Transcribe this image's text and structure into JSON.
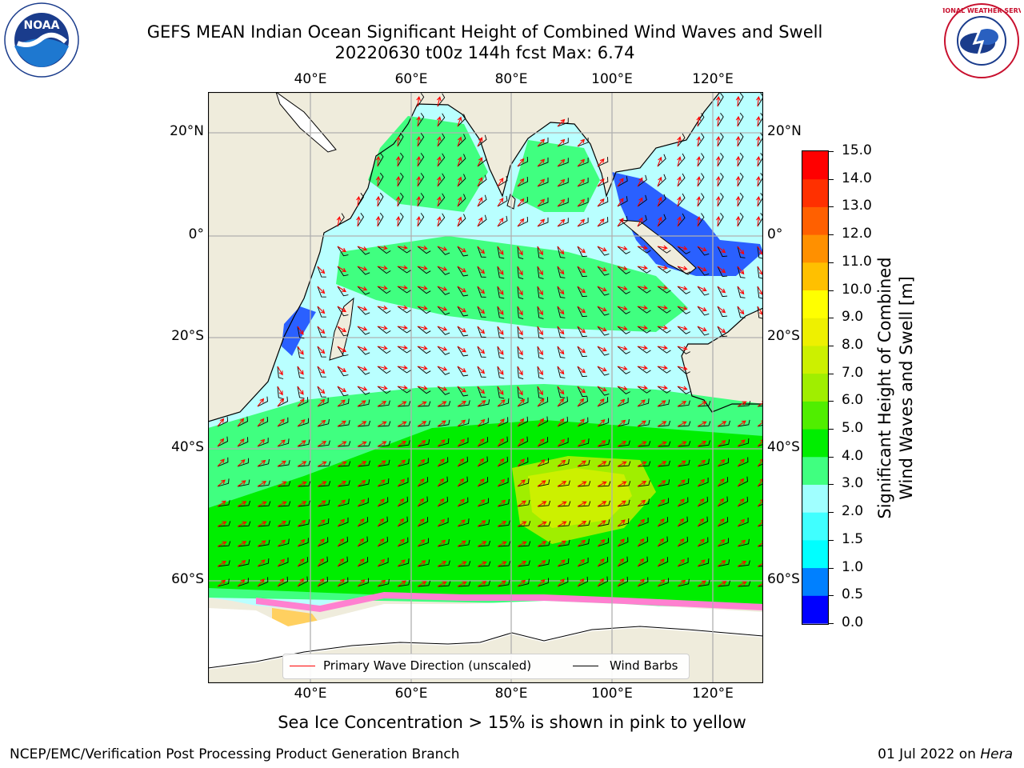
{
  "header": {
    "title_line1": "GEFS MEAN Indian Ocean Significant Height of Combined Wind Waves and Swell",
    "title_line2": "20220630 t00z 144h fcst   Max: 6.74"
  },
  "logos": {
    "left": "NOAA",
    "right": "NATIONAL WEATHER SERVICE"
  },
  "map": {
    "lon_labels": [
      "40°E",
      "60°E",
      "80°E",
      "100°E",
      "120°E"
    ],
    "lat_labels": [
      "20°N",
      "0°",
      "20°S",
      "40°S",
      "60°S"
    ],
    "land_color": "#efecdc",
    "ocean_base_color": "#b9ffff"
  },
  "legend": {
    "wave_direction": "Primary Wave Direction (unscaled)",
    "wind_barbs": "Wind Barbs",
    "wave_color": "#ff0000",
    "wind_color": "#000000"
  },
  "colorbar": {
    "title_line1": "Significant Height of Combined",
    "title_line2": "Wind Waves and Swell [m]",
    "labels": [
      "0.0",
      "0.5",
      "1.0",
      "1.5",
      "2.0",
      "3.0",
      "4.0",
      "5.0",
      "6.0",
      "7.0",
      "8.0",
      "9.0",
      "10.0",
      "11.0",
      "12.0",
      "13.0",
      "14.0",
      "15.0"
    ],
    "colors": [
      "#0000ff",
      "#0080ff",
      "#00ffff",
      "#40ffff",
      "#a0ffff",
      "#40ff80",
      "#00ee00",
      "#50ee00",
      "#a0ee00",
      "#ccf000",
      "#eef000",
      "#ffff00",
      "#ffc000",
      "#ff9000",
      "#ff6000",
      "#ff3000",
      "#ff0000"
    ]
  },
  "caption": "Sea Ice Concentration > 15% is shown in pink to yellow",
  "footer": {
    "left": "NCEP/EMC/Verification Post Processing Product Generation Branch",
    "right_date": "01 Jul 2022 on ",
    "right_host": "Hera"
  }
}
